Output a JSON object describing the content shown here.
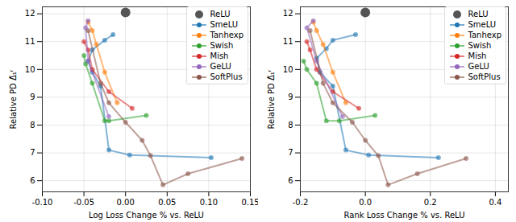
{
  "chart_data": [
    {
      "type": "line",
      "x_label": "Log Loss Change % vs. ReLU",
      "y_label": "Relative PD Δ̃₁ʳ",
      "xlim": [
        -0.1,
        0.15
      ],
      "xticks": [
        {
          "value": -0.1,
          "label": "-0.10"
        },
        {
          "value": -0.05,
          "label": "-0.05"
        },
        {
          "value": 0,
          "label": "0.00"
        },
        {
          "value": 0.05,
          "label": "0.05"
        },
        {
          "value": 0.1,
          "label": "0.10"
        },
        {
          "value": 0.15,
          "label": "0.15"
        }
      ],
      "ylim": [
        5.6,
        12.25
      ],
      "yticks": [
        6,
        7,
        8,
        9,
        10,
        11,
        12
      ],
      "grid": true,
      "legend": "upper right",
      "series": [
        {
          "name": "ReLU",
          "color": "#555555",
          "type": "scatter",
          "marker": "circle",
          "x": [
            0
          ],
          "values": [
            12.05
          ]
        },
        {
          "name": "SmeLU",
          "color": "#1f77b4",
          "marker": "circle",
          "line_style": "solid",
          "x": [
            -0.015,
            -0.025,
            -0.04,
            -0.045,
            -0.04,
            -0.03,
            -0.02,
            0.005,
            0.103
          ],
          "values": [
            11.25,
            11.05,
            10.7,
            10.3,
            9.9,
            9.4,
            7.1,
            6.92,
            6.83
          ]
        },
        {
          "name": "Tanhexp",
          "color": "#ff7f0e",
          "marker": "circle",
          "line_style": "solid",
          "x": [
            -0.045,
            -0.04,
            -0.035,
            -0.025,
            -0.01
          ],
          "values": [
            11.7,
            11.4,
            10.9,
            9.9,
            8.8
          ]
        },
        {
          "name": "Swish",
          "color": "#2ca02c",
          "marker": "circle",
          "line_style": "solid",
          "x": [
            -0.05,
            -0.048,
            -0.04,
            -0.025,
            -0.02,
            0.025
          ],
          "values": [
            10.5,
            10.2,
            9.5,
            8.15,
            8.15,
            8.35
          ]
        },
        {
          "name": "Mish",
          "color": "#d62728",
          "marker": "circle",
          "line_style": "solid",
          "x": [
            -0.05,
            -0.045,
            -0.04,
            -0.02,
            0.008
          ],
          "values": [
            11.0,
            10.7,
            10.0,
            9.2,
            8.6
          ]
        },
        {
          "name": "GeLU",
          "color": "#9467bd",
          "marker": "circle",
          "line_style": "solid",
          "x": [
            -0.045,
            -0.048,
            -0.045,
            -0.02
          ],
          "values": [
            11.75,
            11.5,
            10.3,
            8.3
          ]
        },
        {
          "name": "SoftPlus",
          "color": "#8c564b",
          "marker": "circle",
          "line_style": "solid",
          "x": [
            -0.045,
            -0.03,
            -0.02,
            0.0,
            0.02,
            0.03,
            0.045,
            0.075,
            0.14
          ],
          "values": [
            11.4,
            9.5,
            8.8,
            8.1,
            7.45,
            6.9,
            5.85,
            6.25,
            6.8
          ]
        }
      ]
    },
    {
      "type": "line",
      "x_label": "Rank Loss Change % vs. ReLU",
      "y_label": "Relative PD Δ̃₁ʳ",
      "xlim": [
        -0.2,
        0.44
      ],
      "xticks": [
        {
          "value": -0.2,
          "label": "-0.2"
        },
        {
          "value": 0,
          "label": "0.0"
        },
        {
          "value": 0.2,
          "label": "0.2"
        },
        {
          "value": 0.4,
          "label": "0.4"
        }
      ],
      "ylim": [
        5.6,
        12.25
      ],
      "yticks": [
        6,
        7,
        8,
        9,
        10,
        11,
        12
      ],
      "grid": true,
      "legend": "upper right",
      "series": [
        {
          "name": "ReLU",
          "color": "#555555",
          "type": "scatter",
          "marker": "circle",
          "x": [
            0
          ],
          "values": [
            12.05
          ]
        },
        {
          "name": "SmeLU",
          "color": "#1f77b4",
          "marker": "circle",
          "line_style": "solid",
          "x": [
            -0.03,
            -0.1,
            -0.12,
            -0.15,
            -0.14,
            -0.1,
            -0.06,
            0.01,
            0.225
          ],
          "values": [
            11.25,
            11.05,
            10.75,
            10.4,
            9.9,
            9.4,
            7.1,
            6.92,
            6.83
          ]
        },
        {
          "name": "Tanhexp",
          "color": "#ff7f0e",
          "marker": "circle",
          "line_style": "solid",
          "x": [
            -0.16,
            -0.15,
            -0.13,
            -0.1,
            -0.06
          ],
          "values": [
            11.7,
            11.4,
            10.9,
            9.9,
            8.8
          ]
        },
        {
          "name": "Swish",
          "color": "#2ca02c",
          "marker": "circle",
          "line_style": "solid",
          "x": [
            -0.19,
            -0.18,
            -0.15,
            -0.12,
            -0.08,
            0.03
          ],
          "values": [
            10.3,
            10.0,
            9.5,
            8.15,
            8.15,
            8.35
          ]
        },
        {
          "name": "Mish",
          "color": "#d62728",
          "marker": "circle",
          "line_style": "solid",
          "x": [
            -0.18,
            -0.17,
            -0.15,
            -0.1,
            -0.02
          ],
          "values": [
            11.0,
            10.7,
            10.0,
            9.2,
            8.6
          ]
        },
        {
          "name": "GeLU",
          "color": "#9467bd",
          "marker": "circle",
          "line_style": "solid",
          "x": [
            -0.16,
            -0.18,
            -0.15,
            -0.07
          ],
          "values": [
            11.75,
            11.5,
            10.3,
            8.3
          ]
        },
        {
          "name": "SoftPlus",
          "color": "#8c564b",
          "marker": "circle",
          "line_style": "solid",
          "x": [
            -0.17,
            -0.13,
            -0.1,
            -0.04,
            0.0,
            0.04,
            0.07,
            0.16,
            0.31
          ],
          "values": [
            11.4,
            9.5,
            8.8,
            8.1,
            7.45,
            6.9,
            5.85,
            6.25,
            6.8
          ]
        }
      ]
    }
  ]
}
